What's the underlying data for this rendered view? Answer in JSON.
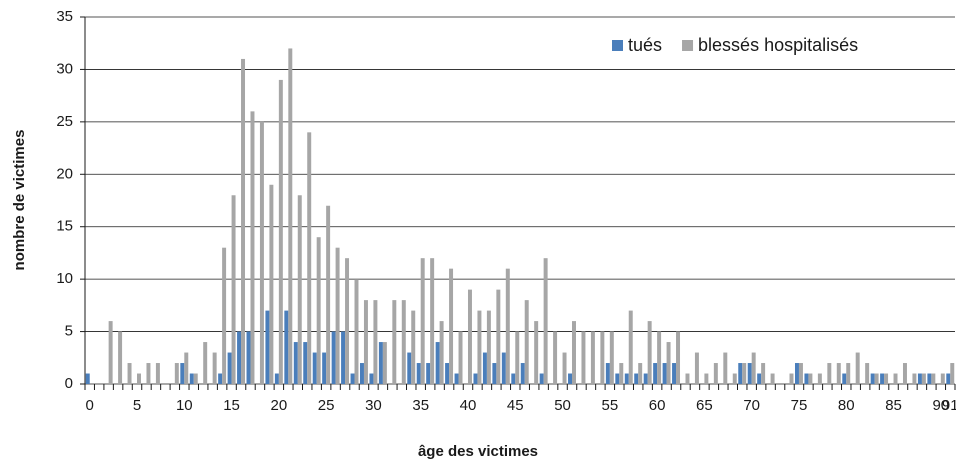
{
  "chart_data": {
    "type": "bar",
    "xlabel": "âge des victimes",
    "ylabel": "nombre de victimes",
    "categories": [
      "0",
      null,
      null,
      null,
      null,
      "5",
      null,
      null,
      null,
      null,
      "10",
      null,
      null,
      null,
      null,
      "15",
      null,
      null,
      null,
      null,
      "20",
      null,
      null,
      null,
      null,
      "25",
      null,
      null,
      null,
      null,
      "30",
      null,
      null,
      null,
      null,
      "35",
      null,
      null,
      null,
      null,
      "40",
      null,
      null,
      null,
      null,
      "45",
      null,
      null,
      null,
      null,
      "50",
      null,
      null,
      null,
      null,
      "55",
      null,
      null,
      null,
      null,
      "60",
      null,
      null,
      null,
      null,
      "65",
      null,
      null,
      null,
      null,
      "70",
      null,
      null,
      null,
      null,
      "75",
      null,
      null,
      null,
      null,
      "80",
      null,
      null,
      null,
      null,
      "85",
      null,
      null,
      null,
      null,
      "90",
      "91"
    ],
    "series": [
      {
        "name": "tués",
        "color": "#4a7ebb",
        "values": [
          1,
          0,
          0,
          0,
          0,
          0,
          0,
          0,
          0,
          0,
          2,
          1,
          0,
          0,
          1,
          3,
          5,
          5,
          0,
          7,
          1,
          7,
          4,
          4,
          3,
          3,
          5,
          5,
          1,
          2,
          1,
          4,
          0,
          0,
          3,
          2,
          2,
          4,
          2,
          1,
          0,
          1,
          3,
          2,
          3,
          1,
          2,
          0,
          1,
          0,
          0,
          1,
          0,
          0,
          0,
          2,
          1,
          1,
          1,
          1,
          2,
          2,
          2,
          0,
          0,
          0,
          0,
          0,
          0,
          2,
          2,
          1,
          0,
          0,
          0,
          2,
          1,
          0,
          0,
          0,
          1,
          0,
          0,
          1,
          1,
          0,
          0,
          0,
          1,
          1,
          0,
          1
        ]
      },
      {
        "name": "blessés hospitalisés",
        "color": "#a6a6a6",
        "values": [
          0,
          0,
          6,
          5,
          2,
          1,
          2,
          2,
          0,
          2,
          3,
          1,
          4,
          3,
          13,
          18,
          31,
          26,
          25,
          19,
          29,
          32,
          18,
          24,
          14,
          17,
          13,
          12,
          10,
          8,
          8,
          4,
          8,
          8,
          7,
          12,
          12,
          6,
          11,
          5,
          9,
          7,
          7,
          9,
          11,
          5,
          8,
          6,
          12,
          5,
          3,
          6,
          5,
          5,
          5,
          5,
          2,
          7,
          2,
          6,
          5,
          4,
          5,
          1,
          3,
          1,
          2,
          3,
          1,
          2,
          3,
          2,
          1,
          0,
          1,
          2,
          1,
          1,
          2,
          2,
          2,
          3,
          2,
          1,
          1,
          1,
          2,
          1,
          1,
          1,
          1,
          2
        ]
      }
    ],
    "ylim": [
      0,
      35
    ],
    "yticks": [
      0,
      5,
      10,
      15,
      20,
      25,
      30,
      35
    ],
    "grid": true,
    "legend": "top-right"
  }
}
